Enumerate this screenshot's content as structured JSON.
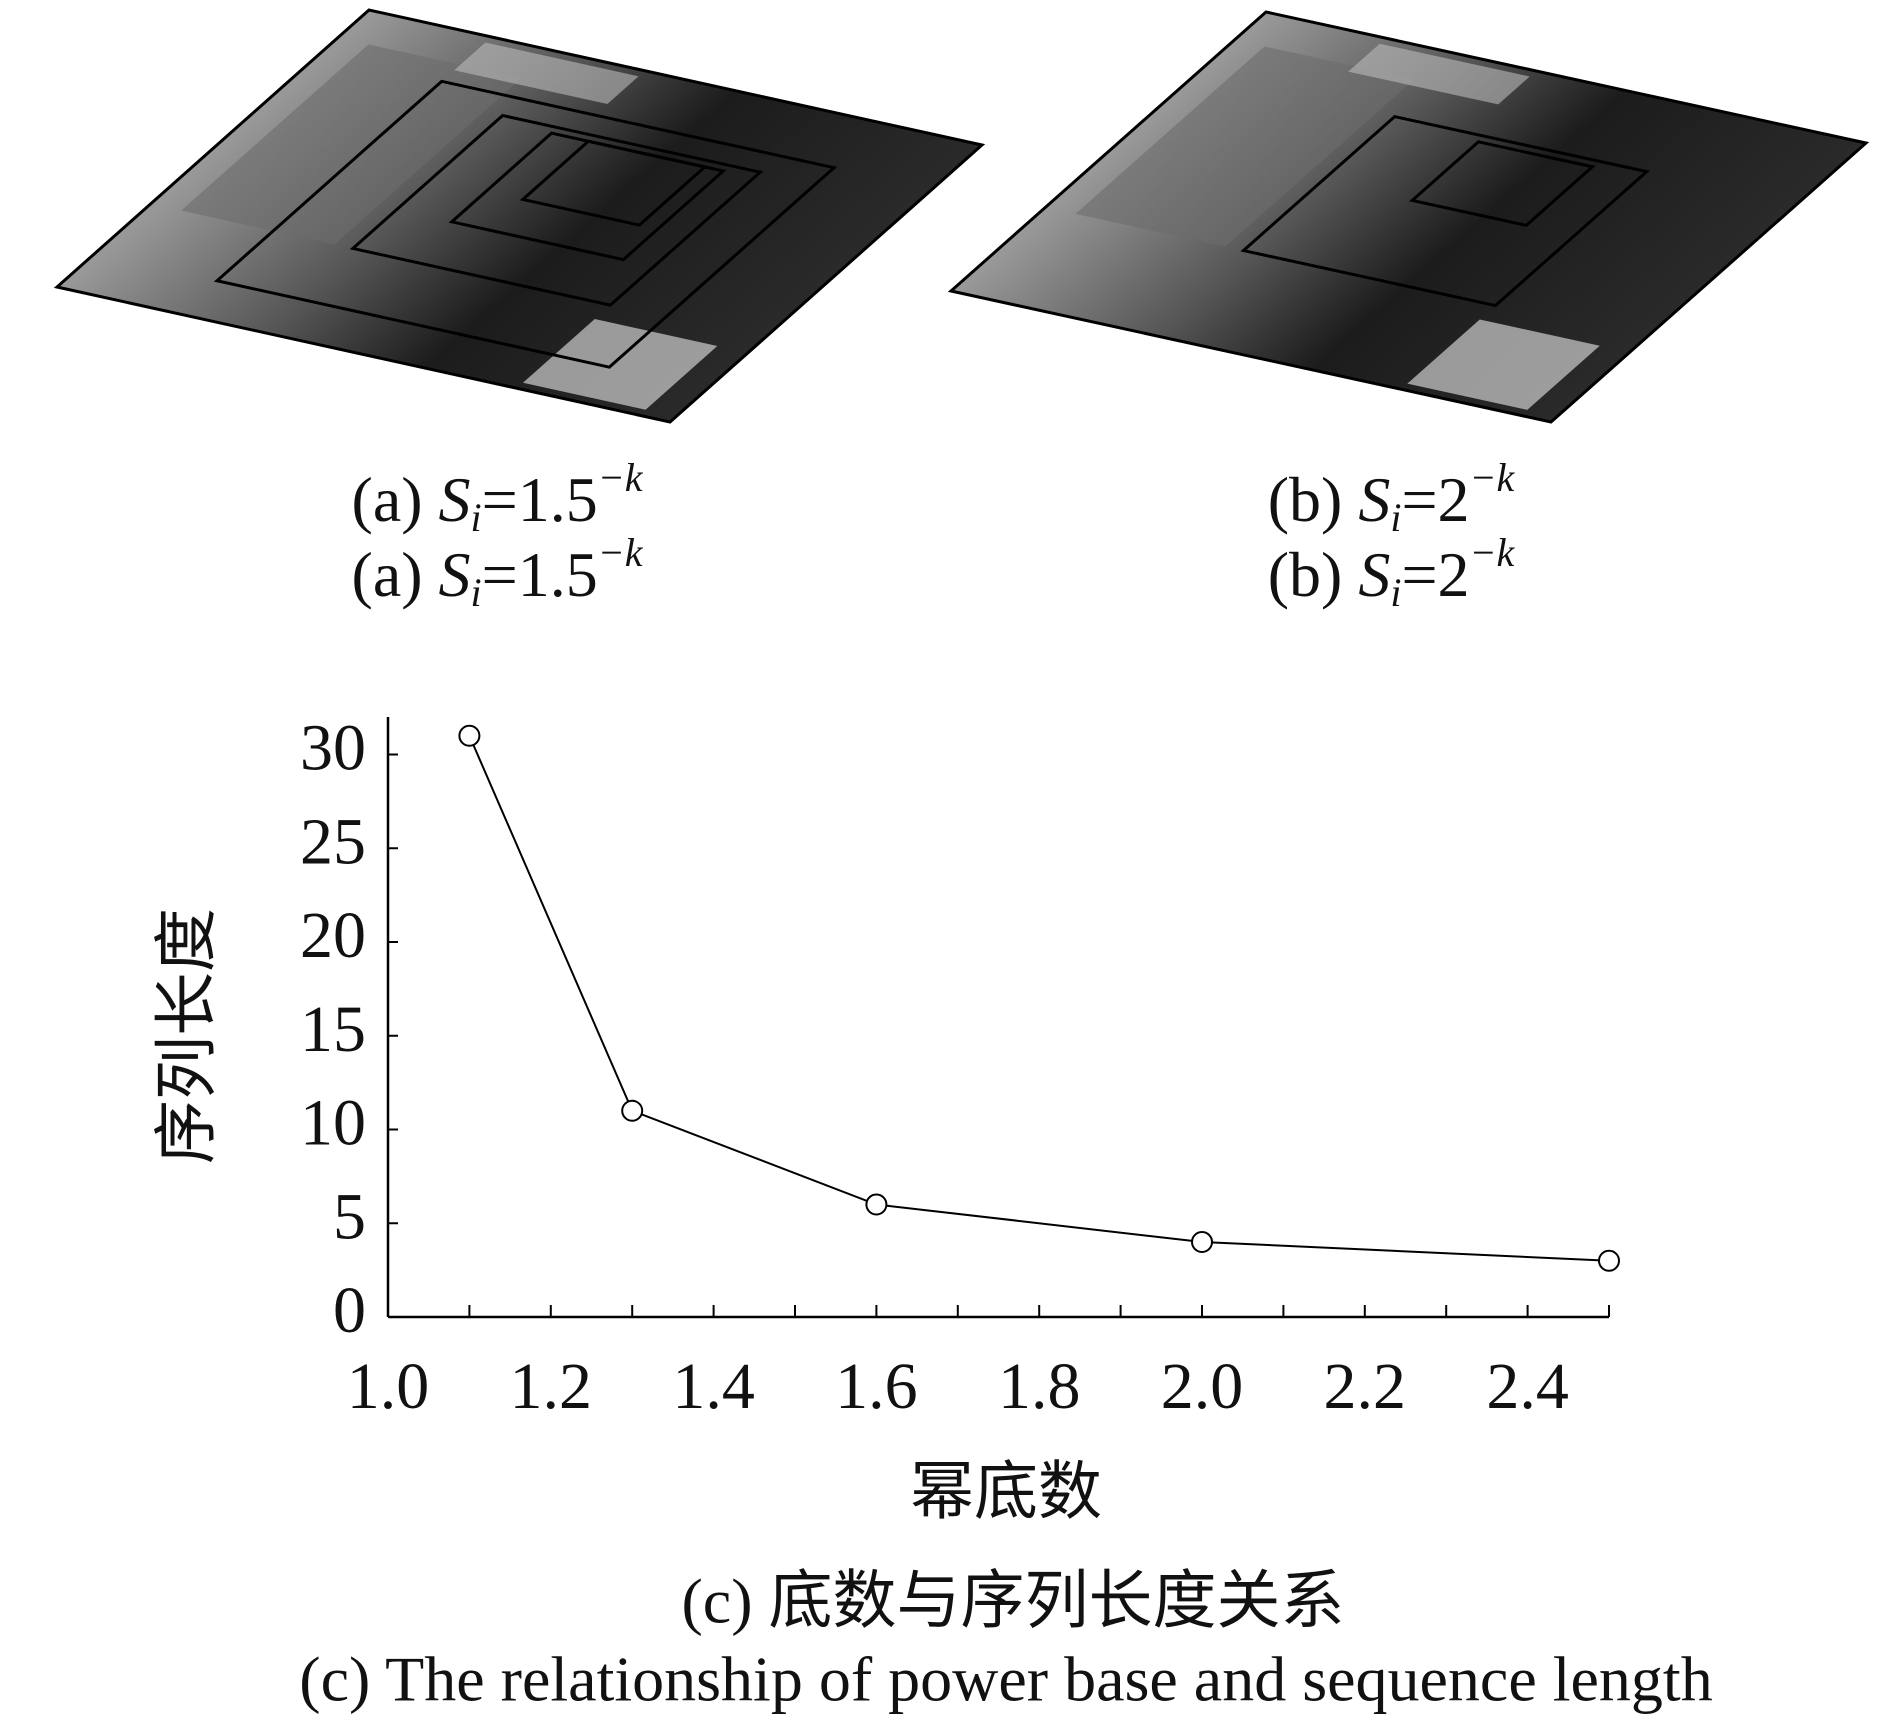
{
  "panel_a": {
    "caption_lines": [
      {
        "label": "(a)",
        "symbol": "S",
        "subscript": "i",
        "value": "=1.5",
        "exponent": "−k"
      },
      {
        "label": "(a)",
        "symbol": "S",
        "subscript": "i",
        "value": "=1.5",
        "exponent": "−k"
      }
    ]
  },
  "panel_b": {
    "caption_lines": [
      {
        "label": "(b)",
        "symbol": "S",
        "subscript": "i",
        "value": "=2",
        "exponent": "−k"
      },
      {
        "label": "(b)",
        "symbol": "S",
        "subscript": "i",
        "value": "=2",
        "exponent": "−k"
      }
    ]
  },
  "chart_data": {
    "type": "line",
    "x_label": "幂底数",
    "y_label": "序列长度",
    "caption": "(c) 底数与序列长度关系",
    "caption_en": "(c) The relationship of power base and sequence length",
    "x": [
      1.1,
      1.3,
      1.6,
      2.0,
      2.5
    ],
    "series": [
      {
        "name": "序列长度",
        "color": "#000000",
        "values": [
          31,
          11,
          6,
          4,
          3
        ]
      }
    ],
    "xlim": [
      1.0,
      2.5
    ],
    "xticks": [
      {
        "value": 1,
        "label": "1.0"
      },
      1.2,
      1.4,
      1.6,
      1.8,
      {
        "value": 2,
        "label": "2.0"
      },
      2.2,
      2.4
    ],
    "xminor_ticks": [
      1.1,
      1.3,
      1.5,
      1.7,
      1.9,
      2.1,
      2.3,
      2.5
    ],
    "ylim": [
      0,
      32
    ],
    "yticks": [
      0,
      5,
      10,
      15,
      20,
      25,
      30
    ],
    "grid": false,
    "marker": "circle"
  }
}
